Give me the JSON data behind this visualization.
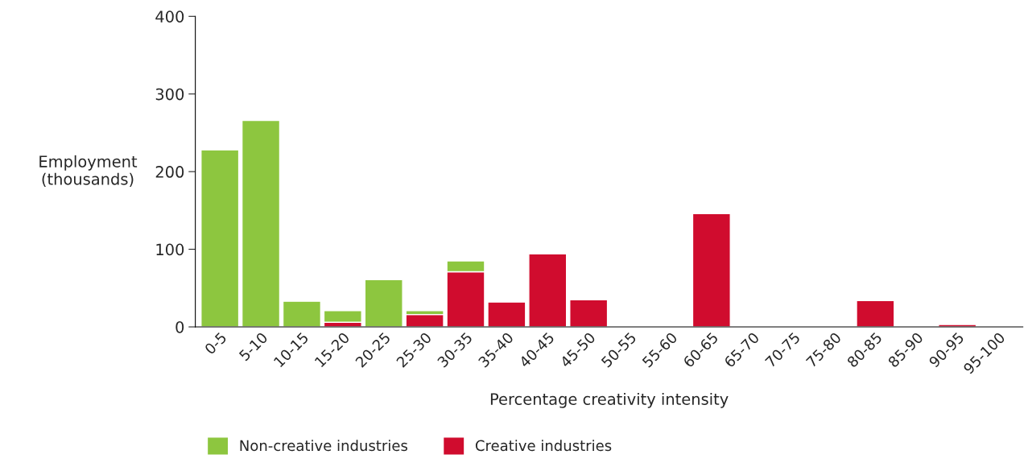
{
  "chart_data": {
    "type": "bar",
    "stacked": true,
    "xlabel": "Percentage creativity intensity",
    "ylabel": "Employment\n(thousands)",
    "categories": [
      "0-5",
      "5-10",
      "10-15",
      "15-20",
      "20-25",
      "25-30",
      "30-35",
      "35-40",
      "40-45",
      "45-50",
      "50-55",
      "55-60",
      "60-65",
      "65-70",
      "70-75",
      "75-80",
      "80-85",
      "85-90",
      "90-95",
      "95-100"
    ],
    "series": [
      {
        "name": "Creative industries",
        "color": "#d00c2e",
        "values": [
          null,
          null,
          null,
          6,
          null,
          16,
          71,
          32,
          94,
          35,
          null,
          null,
          146,
          null,
          null,
          null,
          34,
          null,
          3,
          null
        ]
      },
      {
        "name": "Non-creative industries",
        "color": "#8dc63f",
        "values": [
          228,
          266,
          33,
          15,
          61,
          5,
          14,
          null,
          null,
          null,
          null,
          null,
          null,
          null,
          null,
          null,
          null,
          null,
          null,
          null
        ]
      }
    ],
    "ylim": [
      0,
      400
    ],
    "yticks": [
      0,
      100,
      200,
      300,
      400
    ],
    "grid": false,
    "legend": "bottom left"
  }
}
